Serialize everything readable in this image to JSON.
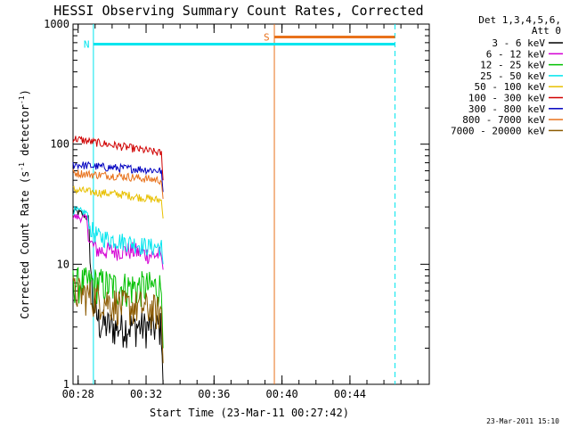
{
  "chart_data": {
    "type": "line",
    "title": "HESSI Observing Summary Count Rates, Corrected",
    "xlabel": "Start Time (23-Mar-11 00:27:42)",
    "ylabel_main": "Corrected Count Rate (s",
    "ylabel_sup1": "-1",
    "ylabel_mid": " detector",
    "ylabel_sup2": "-1",
    "ylabel_end": ")",
    "yscale": "log",
    "ylim": [
      1,
      1000
    ],
    "xlim_minutes": [
      0.0,
      20.97
    ],
    "xticks": [
      {
        "m": 0.3,
        "label": "00:28"
      },
      {
        "m": 4.3,
        "label": "00:32"
      },
      {
        "m": 8.3,
        "label": "00:36"
      },
      {
        "m": 12.3,
        "label": "00:40"
      },
      {
        "m": 16.3,
        "label": "00:44"
      }
    ],
    "yticks": [
      {
        "v": 1,
        "label": "1"
      },
      {
        "v": 10,
        "label": "10"
      },
      {
        "v": 100,
        "label": "100"
      },
      {
        "v": 1000,
        "label": "1000"
      }
    ],
    "legend_header": [
      "Det 1,3,4,5,6,",
      "Att 0"
    ],
    "timestamp": "23-Mar-2011 15:10",
    "flag_labels": {
      "N": "N",
      "S": "S"
    },
    "markers": {
      "n_start_m": 1.2,
      "s_start_m": 11.85,
      "end_dashed_m": 18.95,
      "n_level": 680,
      "s_level": 780,
      "colors": {
        "N": "#00e5ee",
        "S": "#e8721c"
      }
    },
    "data_end_m": 5.3,
    "series": [
      {
        "name": "3 - 6 keV",
        "color": "#000000",
        "values": [
          [
            0.0,
            28
          ],
          [
            0.6,
            26
          ],
          [
            0.9,
            24
          ],
          [
            1.0,
            12
          ],
          [
            1.15,
            5
          ],
          [
            1.3,
            4
          ],
          [
            1.6,
            3.2
          ],
          [
            2.5,
            3
          ],
          [
            3.5,
            3.1
          ],
          [
            4.5,
            3
          ],
          [
            5.2,
            3
          ],
          [
            5.3,
            1
          ]
        ]
      },
      {
        "name": "6 - 12 keV",
        "color": "#d400d4",
        "values": [
          [
            0.0,
            25
          ],
          [
            0.8,
            24
          ],
          [
            1.0,
            15
          ],
          [
            1.5,
            13
          ],
          [
            2.5,
            13
          ],
          [
            3.5,
            13
          ],
          [
            4.5,
            12
          ],
          [
            5.2,
            12
          ],
          [
            5.3,
            9
          ]
        ]
      },
      {
        "name": "12 - 25 keV",
        "color": "#00c000",
        "values": [
          [
            0.0,
            7
          ],
          [
            0.8,
            7
          ],
          [
            1.5,
            7
          ],
          [
            2.5,
            6.5
          ],
          [
            3.5,
            6.5
          ],
          [
            4.5,
            6.5
          ],
          [
            5.2,
            6.5
          ],
          [
            5.3,
            2
          ]
        ]
      },
      {
        "name": "25 - 50 keV",
        "color": "#00e5ee",
        "values": [
          [
            0.0,
            28
          ],
          [
            0.8,
            27
          ],
          [
            1.0,
            20
          ],
          [
            1.5,
            17
          ],
          [
            2.5,
            16
          ],
          [
            3.5,
            15
          ],
          [
            4.5,
            14
          ],
          [
            5.2,
            14
          ],
          [
            5.3,
            10
          ]
        ]
      },
      {
        "name": "50 - 100 keV",
        "color": "#e8c000",
        "values": [
          [
            0.0,
            42
          ],
          [
            1.0,
            40
          ],
          [
            2.0,
            39
          ],
          [
            3.0,
            38
          ],
          [
            4.0,
            36
          ],
          [
            5.2,
            34
          ],
          [
            5.3,
            24
          ]
        ]
      },
      {
        "name": "100 - 300 keV",
        "color": "#d00000",
        "values": [
          [
            0.0,
            112
          ],
          [
            1.0,
            105
          ],
          [
            2.0,
            100
          ],
          [
            3.0,
            95
          ],
          [
            4.0,
            90
          ],
          [
            5.2,
            84
          ],
          [
            5.3,
            50
          ]
        ]
      },
      {
        "name": "300 - 800 keV",
        "color": "#0000c0",
        "values": [
          [
            0.0,
            68
          ],
          [
            1.0,
            66
          ],
          [
            2.0,
            64
          ],
          [
            3.0,
            63
          ],
          [
            4.0,
            62
          ],
          [
            5.2,
            60
          ],
          [
            5.3,
            40
          ]
        ]
      },
      {
        "name": "800 - 7000 keV",
        "color": "#e8721c",
        "values": [
          [
            0.0,
            58
          ],
          [
            1.0,
            56
          ],
          [
            2.0,
            55
          ],
          [
            3.0,
            54
          ],
          [
            4.0,
            52
          ],
          [
            5.2,
            50
          ],
          [
            5.3,
            35
          ]
        ]
      },
      {
        "name": "7000 - 20000 keV",
        "color": "#8b5a00",
        "values": [
          [
            0.0,
            6
          ],
          [
            1.0,
            5.5
          ],
          [
            2.0,
            5
          ],
          [
            3.0,
            4.5
          ],
          [
            4.0,
            4.5
          ],
          [
            5.2,
            4
          ],
          [
            5.3,
            1.5
          ]
        ]
      }
    ]
  }
}
